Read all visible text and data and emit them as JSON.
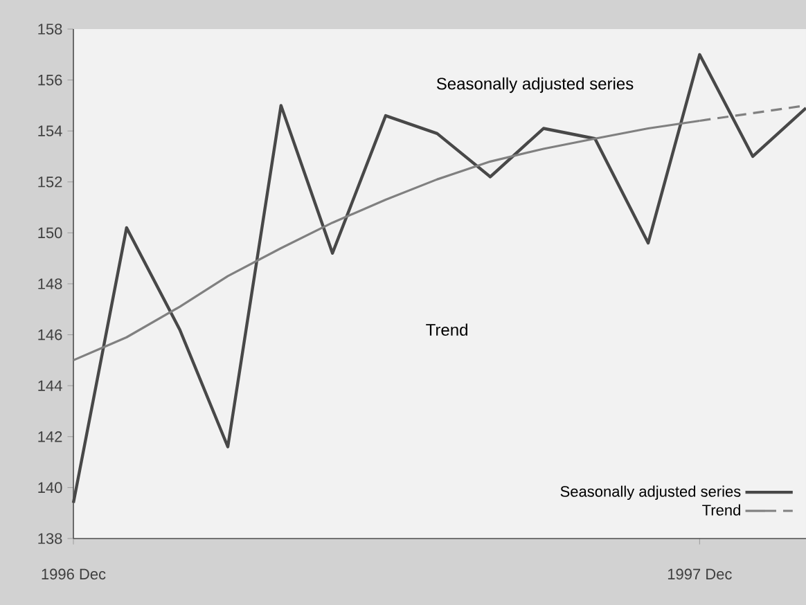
{
  "chart_data": {
    "type": "line",
    "xlim": [
      "1996-12",
      "1998-02"
    ],
    "ylim": [
      138,
      158
    ],
    "xticks": [
      {
        "value": "1996-12",
        "label": "1996 Dec"
      },
      {
        "value": "1997-12",
        "label": "1997 Dec"
      }
    ],
    "yticks": [
      138,
      140,
      142,
      144,
      146,
      148,
      150,
      152,
      154,
      156,
      158
    ],
    "series": [
      {
        "name": "Seasonally adjusted series",
        "color": "#484848",
        "line_style": "solid",
        "x": [
          "1996-12",
          "1997-01",
          "1997-02",
          "1997-03",
          "1997-04",
          "1997-05",
          "1997-06",
          "1997-07",
          "1997-08",
          "1997-09",
          "1997-10",
          "1997-11",
          "1997-12",
          "1998-01",
          "1998-02"
        ],
        "values": [
          139.4,
          150.2,
          146.2,
          141.6,
          155.0,
          149.2,
          154.6,
          153.9,
          152.2,
          154.1,
          153.7,
          149.6,
          157.0,
          153.0,
          154.9
        ]
      },
      {
        "name": "Trend",
        "color": "#808080",
        "line_style": "solid",
        "x": [
          "1996-12",
          "1997-01",
          "1997-02",
          "1997-03",
          "1997-04",
          "1997-05",
          "1997-06",
          "1997-07",
          "1997-08",
          "1997-09",
          "1997-10",
          "1997-11",
          "1997-12"
        ],
        "values": [
          145.0,
          145.9,
          147.1,
          148.3,
          149.4,
          150.4,
          151.3,
          152.1,
          152.8,
          153.3,
          153.7,
          154.1,
          154.4
        ]
      },
      {
        "color": "#808080",
        "line_style": "dashed",
        "x": [
          "1997-12",
          "1998-01",
          "1998-02"
        ],
        "values": [
          154.4,
          154.7,
          155.0
        ]
      }
    ],
    "annotations": [
      "Seasonally adjusted series",
      "Trend"
    ],
    "legend": "bottom right",
    "grid": false,
    "marker": "none"
  }
}
